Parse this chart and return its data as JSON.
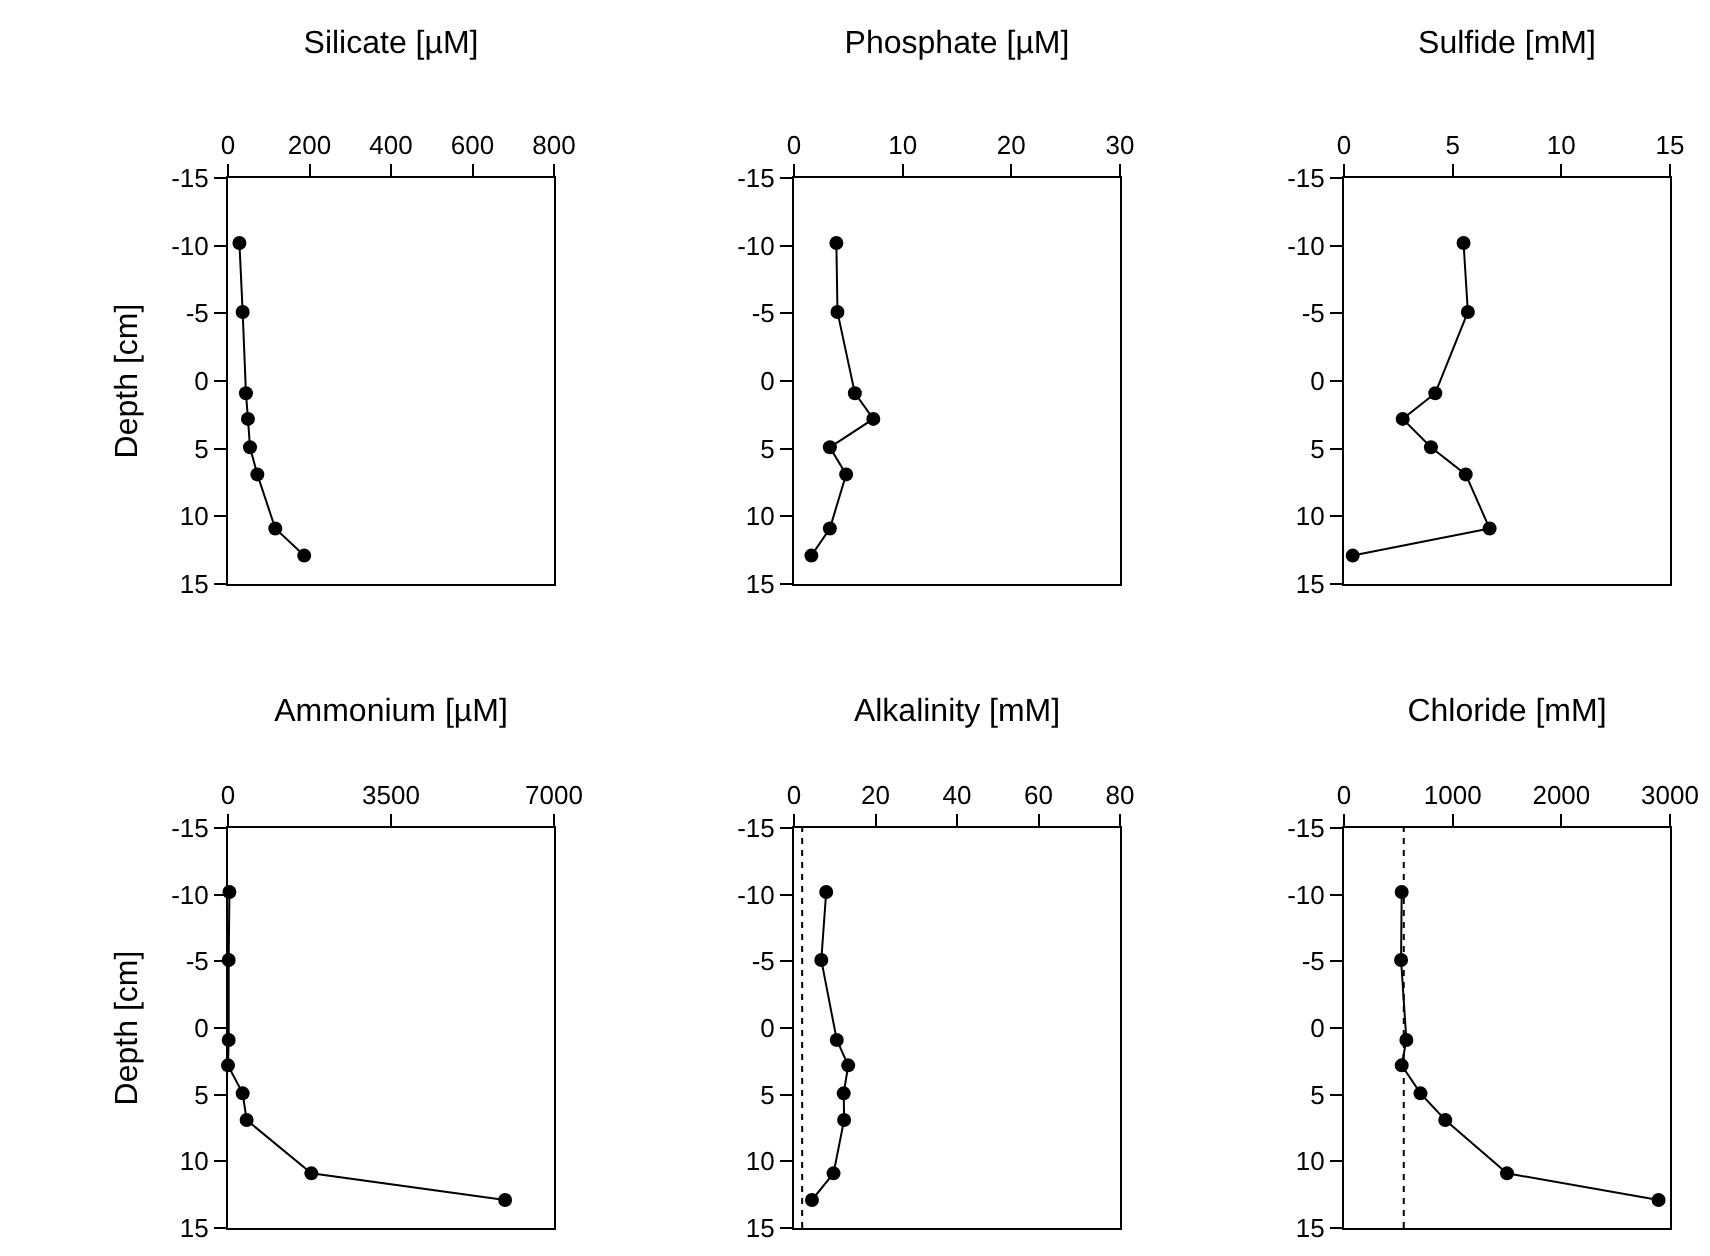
{
  "chart_data": [
    {
      "type": "line",
      "title": "Silicate [µM]",
      "ylabel": "Depth [cm]",
      "xlim": [
        0,
        800
      ],
      "xticks": [
        0,
        200,
        400,
        600,
        800
      ],
      "ylim": [
        15,
        -15
      ],
      "yticks": [
        -15,
        -10,
        -5,
        0,
        5,
        10,
        15
      ],
      "marker": "circle",
      "line_style": "solid",
      "grid": false,
      "series": [
        {
          "color": "#000000",
          "x": [
            28,
            36,
            44,
            49,
            54,
            72,
            116,
            187
          ],
          "values": [
            -10.2,
            -5.1,
            0.9,
            2.8,
            4.9,
            6.9,
            10.9,
            12.9
          ]
        }
      ]
    },
    {
      "type": "line",
      "title": "Phosphate [µM]",
      "xlim": [
        0,
        30
      ],
      "xticks": [
        0,
        10,
        20,
        30
      ],
      "ylim": [
        15,
        -15
      ],
      "yticks": [
        -15,
        -10,
        -5,
        0,
        5,
        10,
        15
      ],
      "marker": "circle",
      "line_style": "solid",
      "grid": false,
      "series": [
        {
          "color": "#000000",
          "x": [
            3.9,
            4.0,
            5.6,
            7.3,
            3.3,
            4.8,
            3.3,
            1.6
          ],
          "values": [
            -10.2,
            -5.1,
            0.9,
            2.8,
            4.9,
            6.9,
            10.9,
            12.9
          ]
        }
      ]
    },
    {
      "type": "line",
      "title": "Sulfide [mM]",
      "xlim": [
        0,
        15
      ],
      "xticks": [
        0,
        5,
        10,
        15
      ],
      "ylim": [
        15,
        -15
      ],
      "yticks": [
        -15,
        -10,
        -5,
        0,
        5,
        10,
        15
      ],
      "marker": "circle",
      "line_style": "solid",
      "grid": false,
      "series": [
        {
          "color": "#000000",
          "x": [
            5.5,
            5.7,
            4.2,
            2.7,
            4.0,
            5.6,
            6.7,
            0.4
          ],
          "values": [
            -10.2,
            -5.1,
            0.9,
            2.8,
            4.9,
            6.9,
            10.9,
            12.9
          ]
        }
      ]
    },
    {
      "type": "line",
      "title": "Ammonium [µM]",
      "ylabel": "Depth [cm]",
      "xlim": [
        0,
        7000
      ],
      "xticks": [
        0,
        3500,
        7000
      ],
      "ylim": [
        15,
        -15
      ],
      "yticks": [
        -15,
        -10,
        -5,
        0,
        5,
        10,
        15
      ],
      "marker": "circle",
      "line_style": "solid",
      "grid": false,
      "series": [
        {
          "color": "#000000",
          "x": [
            30,
            15,
            15,
            0,
            315,
            400,
            1790,
            5950
          ],
          "values": [
            -10.2,
            -5.1,
            0.9,
            2.8,
            4.9,
            6.9,
            10.9,
            12.9
          ]
        }
      ]
    },
    {
      "type": "line",
      "title": "Alkalinity [mM]",
      "xlim": [
        0,
        80
      ],
      "xticks": [
        0,
        20,
        40,
        60,
        80
      ],
      "ylim": [
        15,
        -15
      ],
      "yticks": [
        -15,
        -10,
        -5,
        0,
        5,
        10,
        15
      ],
      "marker": "circle",
      "line_style": "solid",
      "grid": false,
      "ref_lines": [
        {
          "axis": "x",
          "value": 2,
          "line_style": "dotted",
          "color": "#000000"
        }
      ],
      "series": [
        {
          "color": "#000000",
          "x": [
            7.9,
            6.7,
            10.5,
            13.3,
            12.2,
            12.3,
            9.7,
            4.4
          ],
          "values": [
            -10.2,
            -5.1,
            0.9,
            2.8,
            4.9,
            6.9,
            10.9,
            12.9
          ]
        }
      ]
    },
    {
      "type": "line",
      "title": "Chloride [mM]",
      "xlim": [
        0,
        3000
      ],
      "xticks": [
        0,
        1000,
        2000,
        3000
      ],
      "ylim": [
        15,
        -15
      ],
      "yticks": [
        -15,
        -10,
        -5,
        0,
        5,
        10,
        15
      ],
      "marker": "circle",
      "line_style": "solid",
      "grid": false,
      "ref_lines": [
        {
          "axis": "x",
          "value": 550,
          "line_style": "dotted",
          "color": "#000000"
        }
      ],
      "series": [
        {
          "color": "#000000",
          "x": [
            531,
            525,
            574,
            531,
            704,
            932,
            1500,
            2895
          ],
          "values": [
            -10.2,
            -5.1,
            0.9,
            2.8,
            4.9,
            6.9,
            10.9,
            12.9
          ]
        }
      ]
    }
  ]
}
